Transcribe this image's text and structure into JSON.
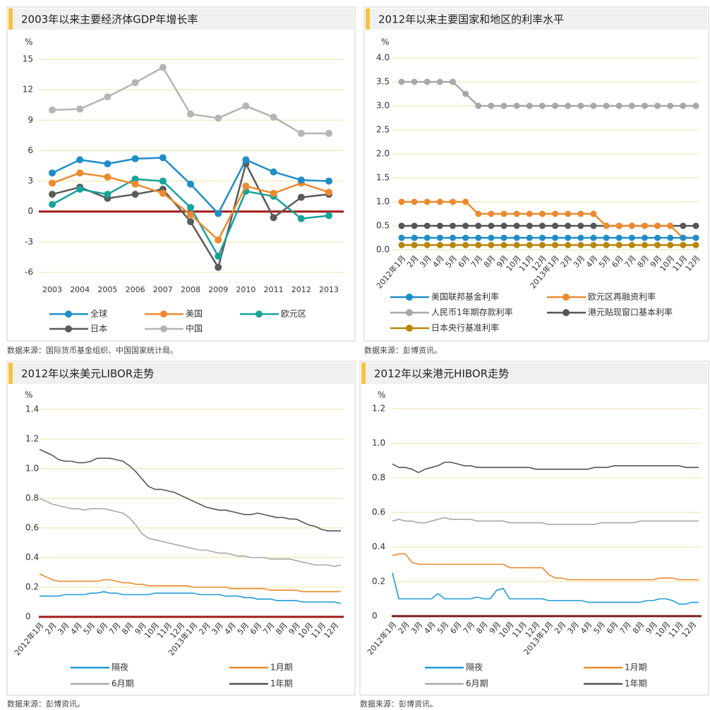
{
  "chart_data": [
    {
      "type": "line",
      "title": "2003年以来主要经济体GDP年增长率",
      "y_unit": "%",
      "source": "数据来源：国际货币基金组织、中国国家统计局。",
      "categories": [
        "2003",
        "2004",
        "2005",
        "2006",
        "2007",
        "2008",
        "2009",
        "2010",
        "2011",
        "2012",
        "2013"
      ],
      "ylim": [
        -6,
        15
      ],
      "yticks": [
        -6,
        -3,
        0,
        3,
        6,
        9,
        12,
        15
      ],
      "grid": true,
      "zero_line_color": "#a31a1a",
      "markers": true,
      "series": [
        {
          "name": "全球",
          "color": "#1f8dc9",
          "values": [
            3.8,
            5.1,
            4.7,
            5.2,
            5.3,
            2.7,
            -0.2,
            5.1,
            3.9,
            3.1,
            3.0
          ]
        },
        {
          "name": "美国",
          "color": "#ec8a2e",
          "values": [
            2.8,
            3.8,
            3.4,
            2.7,
            1.8,
            -0.3,
            -2.8,
            2.5,
            1.8,
            2.8,
            1.9
          ]
        },
        {
          "name": "欧元区",
          "color": "#17a39b",
          "values": [
            0.7,
            2.2,
            1.7,
            3.2,
            3.0,
            0.4,
            -4.4,
            2.0,
            1.5,
            -0.7,
            -0.4
          ]
        },
        {
          "name": "日本",
          "color": "#5a5a5a",
          "values": [
            1.7,
            2.4,
            1.3,
            1.7,
            2.2,
            -1.0,
            -5.5,
            4.7,
            -0.6,
            1.4,
            1.7
          ]
        },
        {
          "name": "中国",
          "color": "#b5b5b5",
          "values": [
            10.0,
            10.1,
            11.3,
            12.7,
            14.2,
            9.6,
            9.2,
            10.4,
            9.3,
            7.7,
            7.7
          ]
        }
      ]
    },
    {
      "type": "line",
      "title": "2012年以来主要国家和地区的利率水平",
      "y_unit": "%",
      "source": "数据来源：彭博资讯。",
      "categories": [
        "2012年1月",
        "2月",
        "3月",
        "4月",
        "5月",
        "6月",
        "7月",
        "8月",
        "9月",
        "10月",
        "11月",
        "12月",
        "2013年1月",
        "2月",
        "3月",
        "4月",
        "5月",
        "6月",
        "7月",
        "8月",
        "9月",
        "10月",
        "11月",
        "12月"
      ],
      "ylim": [
        0,
        4
      ],
      "yticks": [
        {
          "value": 0,
          "label": "0.0"
        },
        0.5,
        {
          "value": 1,
          "label": "1.0"
        },
        1.5,
        {
          "value": 2,
          "label": "2.0"
        },
        2.5,
        {
          "value": 3,
          "label": "3.0"
        },
        3.5,
        {
          "value": 4,
          "label": "4.0"
        }
      ],
      "grid": true,
      "markers": true,
      "series": [
        {
          "name": "美国联邦基金利率",
          "color": "#1f8dc9",
          "values": [
            0.25,
            0.25,
            0.25,
            0.25,
            0.25,
            0.25,
            0.25,
            0.25,
            0.25,
            0.25,
            0.25,
            0.25,
            0.25,
            0.25,
            0.25,
            0.25,
            0.25,
            0.25,
            0.25,
            0.25,
            0.25,
            0.25,
            0.25,
            0.25
          ]
        },
        {
          "name": "欧元区再融资利率",
          "color": "#ec8a2e",
          "values": [
            1.0,
            1.0,
            1.0,
            1.0,
            1.0,
            1.0,
            0.75,
            0.75,
            0.75,
            0.75,
            0.75,
            0.75,
            0.75,
            0.75,
            0.75,
            0.75,
            0.5,
            0.5,
            0.5,
            0.5,
            0.5,
            0.5,
            0.25,
            0.25
          ]
        },
        {
          "name": "人民币1年期存款利率",
          "color": "#a8a8a8",
          "values": [
            3.5,
            3.5,
            3.5,
            3.5,
            3.5,
            3.25,
            3.0,
            3.0,
            3.0,
            3.0,
            3.0,
            3.0,
            3.0,
            3.0,
            3.0,
            3.0,
            3.0,
            3.0,
            3.0,
            3.0,
            3.0,
            3.0,
            3.0,
            3.0
          ]
        },
        {
          "name": "港元贴现窗口基本利率",
          "color": "#555555",
          "values": [
            0.5,
            0.5,
            0.5,
            0.5,
            0.5,
            0.5,
            0.5,
            0.5,
            0.5,
            0.5,
            0.5,
            0.5,
            0.5,
            0.5,
            0.5,
            0.5,
            0.5,
            0.5,
            0.5,
            0.5,
            0.5,
            0.5,
            0.5,
            0.5
          ]
        },
        {
          "name": "日本央行基准利率",
          "color": "#b8860b",
          "values": [
            0.1,
            0.1,
            0.1,
            0.1,
            0.1,
            0.1,
            0.1,
            0.1,
            0.1,
            0.1,
            0.1,
            0.1,
            0.1,
            0.1,
            0.1,
            0.1,
            0.1,
            0.1,
            0.1,
            0.1,
            0.1,
            0.1,
            0.1,
            0.1
          ]
        }
      ]
    },
    {
      "type": "line",
      "title": "2012年以来美元LIBOR走势",
      "y_unit": "%",
      "source": "数据来源：彭博资讯。",
      "categories": [
        "2012年1月",
        null,
        "2月",
        null,
        "3月",
        null,
        "4月",
        null,
        "5月",
        null,
        "6月",
        null,
        "7月",
        null,
        "8月",
        null,
        "9月",
        null,
        "10月",
        null,
        "11月",
        null,
        "12月",
        null,
        "2013年1月",
        null,
        "2月",
        null,
        "3月",
        null,
        "4月",
        null,
        "5月",
        null,
        "6月",
        null,
        "7月",
        null,
        "8月",
        null,
        "9月",
        null,
        "10月",
        null,
        "11月",
        null,
        "12月",
        null
      ],
      "ylim": [
        0,
        1.4
      ],
      "yticks": [
        0,
        0.2,
        0.4,
        0.6,
        0.8,
        {
          "value": 1,
          "label": "1.0"
        },
        1.2,
        1.4
      ],
      "grid": true,
      "zero_line_color": "#a31a1a",
      "markers": false,
      "series": [
        {
          "name": "隔夜",
          "color": "#1f9ad6",
          "values": [
            0.14,
            0.14,
            0.14,
            0.14,
            0.15,
            0.15,
            0.15,
            0.15,
            0.16,
            0.16,
            0.17,
            0.16,
            0.16,
            0.15,
            0.15,
            0.15,
            0.15,
            0.15,
            0.16,
            0.16,
            0.16,
            0.16,
            0.16,
            0.16,
            0.16,
            0.15,
            0.15,
            0.15,
            0.15,
            0.14,
            0.14,
            0.14,
            0.13,
            0.13,
            0.12,
            0.12,
            0.12,
            0.11,
            0.11,
            0.11,
            0.11,
            0.1,
            0.1,
            0.1,
            0.1,
            0.1,
            0.1,
            0.09
          ]
        },
        {
          "name": "1月期",
          "color": "#ec8a2e",
          "values": [
            0.29,
            0.27,
            0.25,
            0.24,
            0.24,
            0.24,
            0.24,
            0.24,
            0.24,
            0.24,
            0.25,
            0.25,
            0.24,
            0.23,
            0.23,
            0.22,
            0.22,
            0.21,
            0.21,
            0.21,
            0.21,
            0.21,
            0.21,
            0.21,
            0.2,
            0.2,
            0.2,
            0.2,
            0.2,
            0.2,
            0.19,
            0.19,
            0.19,
            0.19,
            0.19,
            0.19,
            0.18,
            0.18,
            0.18,
            0.18,
            0.18,
            0.17,
            0.17,
            0.17,
            0.17,
            0.17,
            0.17,
            0.17
          ]
        },
        {
          "name": "6月期",
          "color": "#a8a8a8",
          "values": [
            0.8,
            0.78,
            0.76,
            0.75,
            0.74,
            0.73,
            0.73,
            0.72,
            0.73,
            0.73,
            0.73,
            0.72,
            0.71,
            0.7,
            0.67,
            0.62,
            0.56,
            0.53,
            0.52,
            0.51,
            0.5,
            0.49,
            0.48,
            0.47,
            0.46,
            0.45,
            0.45,
            0.44,
            0.43,
            0.43,
            0.42,
            0.41,
            0.41,
            0.4,
            0.4,
            0.4,
            0.39,
            0.39,
            0.39,
            0.39,
            0.38,
            0.37,
            0.36,
            0.35,
            0.35,
            0.35,
            0.34,
            0.35
          ]
        },
        {
          "name": "1年期",
          "color": "#555555",
          "values": [
            1.13,
            1.11,
            1.09,
            1.06,
            1.05,
            1.05,
            1.04,
            1.04,
            1.05,
            1.07,
            1.07,
            1.07,
            1.06,
            1.05,
            1.02,
            0.98,
            0.93,
            0.88,
            0.86,
            0.86,
            0.85,
            0.84,
            0.82,
            0.8,
            0.78,
            0.76,
            0.74,
            0.73,
            0.72,
            0.72,
            0.71,
            0.7,
            0.69,
            0.69,
            0.7,
            0.69,
            0.68,
            0.67,
            0.67,
            0.66,
            0.66,
            0.64,
            0.62,
            0.61,
            0.59,
            0.58,
            0.58,
            0.58
          ]
        }
      ]
    },
    {
      "type": "line",
      "title": "2012年以来港元HIBOR走势",
      "y_unit": "%",
      "source": "数据来源：彭博资讯。",
      "categories": [
        "2012年1月",
        null,
        "2月",
        null,
        "3月",
        null,
        "4月",
        null,
        "5月",
        null,
        "6月",
        null,
        "7月",
        null,
        "8月",
        null,
        "9月",
        null,
        "10月",
        null,
        "11月",
        null,
        "12月",
        null,
        "2013年1月",
        null,
        "2月",
        null,
        "3月",
        null,
        "4月",
        null,
        "5月",
        null,
        "6月",
        null,
        "7月",
        null,
        "8月",
        null,
        "9月",
        null,
        "10月",
        null,
        "11月",
        null,
        "12月",
        null
      ],
      "ylim": [
        0,
        1.2
      ],
      "yticks": [
        0,
        0.2,
        0.4,
        0.6,
        0.8,
        {
          "value": 1,
          "label": "1.0"
        },
        1.2
      ],
      "grid": true,
      "zero_line_color": "#7a1f1f",
      "markers": false,
      "series": [
        {
          "name": "隔夜",
          "color": "#1f9ad6",
          "values": [
            0.25,
            0.1,
            0.1,
            0.1,
            0.1,
            0.1,
            0.1,
            0.13,
            0.1,
            0.1,
            0.1,
            0.1,
            0.1,
            0.11,
            0.1,
            0.1,
            0.15,
            0.16,
            0.1,
            0.1,
            0.1,
            0.1,
            0.1,
            0.1,
            0.09,
            0.09,
            0.09,
            0.09,
            0.09,
            0.09,
            0.08,
            0.08,
            0.08,
            0.08,
            0.08,
            0.08,
            0.08,
            0.08,
            0.08,
            0.09,
            0.09,
            0.1,
            0.1,
            0.09,
            0.07,
            0.07,
            0.08,
            0.08
          ]
        },
        {
          "name": "1月期",
          "color": "#ec8a2e",
          "values": [
            0.35,
            0.36,
            0.36,
            0.31,
            0.3,
            0.3,
            0.3,
            0.3,
            0.3,
            0.3,
            0.3,
            0.3,
            0.3,
            0.3,
            0.3,
            0.3,
            0.3,
            0.3,
            0.28,
            0.28,
            0.28,
            0.28,
            0.28,
            0.28,
            0.24,
            0.22,
            0.22,
            0.21,
            0.21,
            0.21,
            0.21,
            0.21,
            0.21,
            0.21,
            0.21,
            0.21,
            0.21,
            0.21,
            0.21,
            0.21,
            0.21,
            0.22,
            0.22,
            0.22,
            0.21,
            0.21,
            0.21,
            0.21
          ]
        },
        {
          "name": "6月期",
          "color": "#a8a8a8",
          "values": [
            0.55,
            0.56,
            0.55,
            0.55,
            0.54,
            0.54,
            0.55,
            0.56,
            0.57,
            0.56,
            0.56,
            0.56,
            0.56,
            0.55,
            0.55,
            0.55,
            0.55,
            0.55,
            0.54,
            0.54,
            0.54,
            0.54,
            0.54,
            0.54,
            0.53,
            0.53,
            0.53,
            0.53,
            0.53,
            0.53,
            0.53,
            0.53,
            0.54,
            0.54,
            0.54,
            0.54,
            0.54,
            0.54,
            0.55,
            0.55,
            0.55,
            0.55,
            0.55,
            0.55,
            0.55,
            0.55,
            0.55,
            0.55
          ]
        },
        {
          "name": "1年期",
          "color": "#555555",
          "values": [
            0.88,
            0.86,
            0.86,
            0.85,
            0.83,
            0.85,
            0.86,
            0.87,
            0.89,
            0.89,
            0.88,
            0.87,
            0.87,
            0.86,
            0.86,
            0.86,
            0.86,
            0.86,
            0.86,
            0.86,
            0.86,
            0.86,
            0.85,
            0.85,
            0.85,
            0.85,
            0.85,
            0.85,
            0.85,
            0.85,
            0.85,
            0.86,
            0.86,
            0.86,
            0.87,
            0.87,
            0.87,
            0.87,
            0.87,
            0.87,
            0.87,
            0.87,
            0.87,
            0.87,
            0.87,
            0.86,
            0.86,
            0.86
          ]
        }
      ]
    }
  ]
}
